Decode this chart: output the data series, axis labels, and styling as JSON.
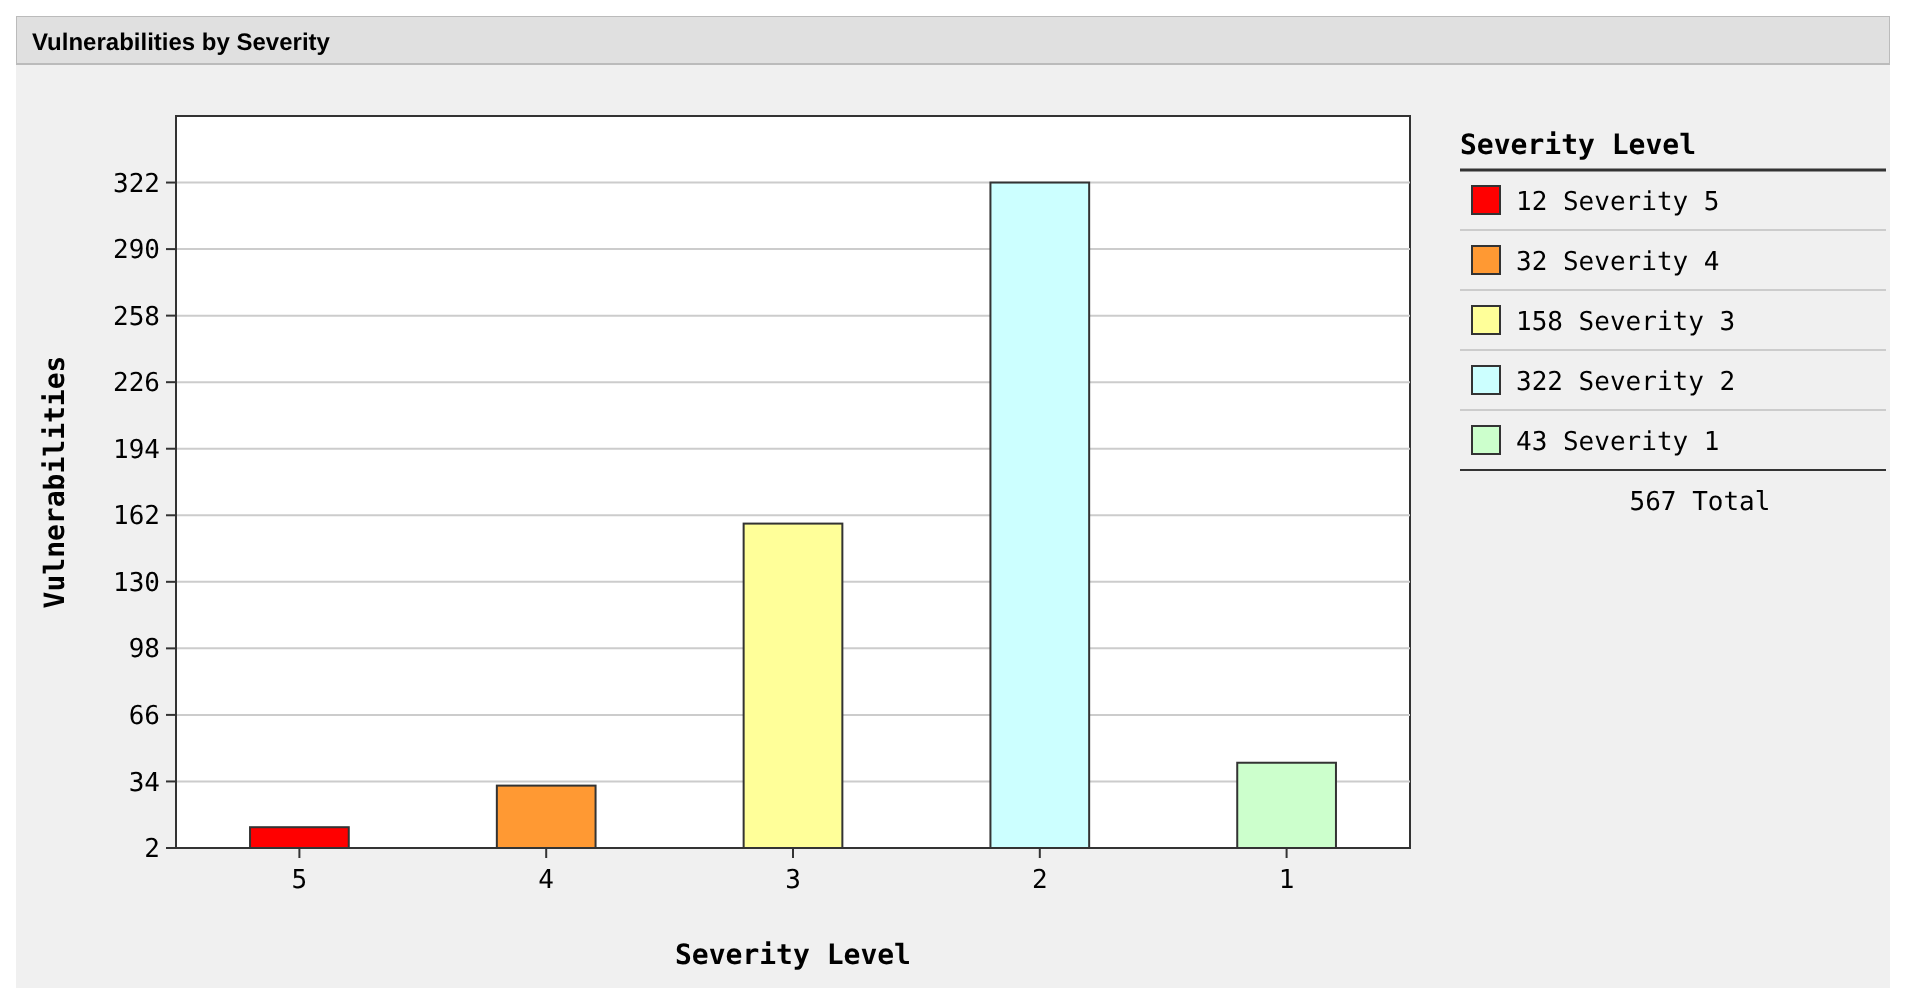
{
  "chart_data": {
    "type": "bar",
    "title": "Vulnerabilities by Severity",
    "xlabel": "Severity Level",
    "ylabel": "Vulnerabilities",
    "legend_title": "Severity Level",
    "categories": [
      "5",
      "4",
      "3",
      "2",
      "1"
    ],
    "series": [
      {
        "name": "12 Severity 5",
        "color": "#ff0000",
        "values": [
          12,
          null,
          null,
          null,
          null
        ]
      },
      {
        "name": "32 Severity 4",
        "color": "#ff9933",
        "values": [
          null,
          32,
          null,
          null,
          null
        ]
      },
      {
        "name": "158 Severity 3",
        "color": "#ffff99",
        "values": [
          null,
          null,
          158,
          null,
          null
        ]
      },
      {
        "name": "322 Severity 2",
        "color": "#ccffff",
        "values": [
          null,
          null,
          null,
          322,
          null
        ]
      },
      {
        "name": "43 Severity 1",
        "color": "#ccffcc",
        "values": [
          null,
          null,
          null,
          null,
          43
        ]
      }
    ],
    "ylim": [
      2,
      354
    ],
    "yticks": [
      2,
      34,
      66,
      98,
      130,
      162,
      194,
      226,
      258,
      290,
      322
    ],
    "grid": "y",
    "legend": "right",
    "annotations": [
      "567 Total"
    ]
  }
}
